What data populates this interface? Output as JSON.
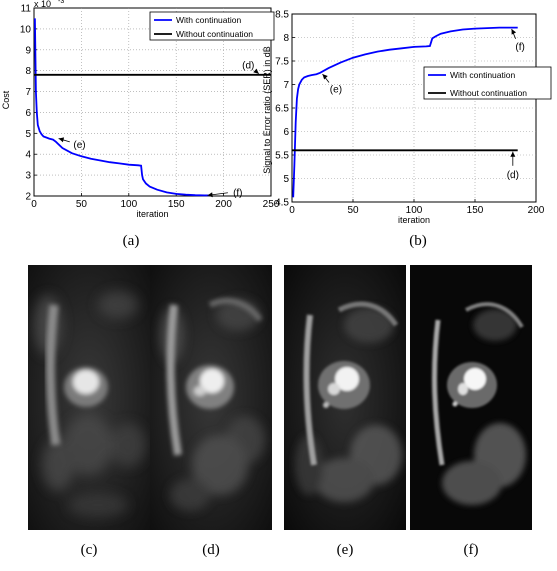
{
  "captions": {
    "a": "(a)",
    "b": "(b)",
    "c": "(c)",
    "d": "(d)",
    "e": "(e)",
    "f": "(f)"
  },
  "colors": {
    "with": "#0000ff",
    "without": "#000000"
  },
  "chart_data": [
    {
      "type": "line",
      "ylabel": "Cost",
      "xlabel": "iteration",
      "yexponent": "x 10",
      "yexponent_power": "-3",
      "xlim": [
        0,
        250
      ],
      "ylim": [
        2,
        11
      ],
      "xticks": [
        "0",
        "50",
        "100",
        "150",
        "200",
        "250"
      ],
      "yticks": [
        "2",
        "3",
        "4",
        "5",
        "6",
        "7",
        "8",
        "9",
        "10",
        "11"
      ],
      "grid": true,
      "legend_position": "top-right",
      "series": [
        {
          "name": "With continuation",
          "color": "#0000ff",
          "x": [
            1,
            2,
            3,
            4,
            6,
            8,
            10,
            13,
            16,
            20,
            23,
            30,
            40,
            50,
            60,
            70,
            80,
            90,
            100,
            110,
            113,
            114,
            115,
            118,
            122,
            130,
            140,
            150,
            160,
            170,
            180,
            185
          ],
          "y": [
            10.5,
            7.0,
            6.0,
            5.4,
            5.1,
            4.95,
            4.85,
            4.8,
            4.75,
            4.7,
            4.6,
            4.3,
            4.05,
            3.9,
            3.78,
            3.7,
            3.62,
            3.56,
            3.5,
            3.47,
            3.45,
            3.0,
            2.8,
            2.6,
            2.45,
            2.3,
            2.17,
            2.1,
            2.06,
            2.04,
            2.03,
            2.03
          ]
        },
        {
          "name": "Without continuation",
          "color": "#000000",
          "x": [
            0,
            250
          ],
          "y": [
            7.8,
            7.8
          ]
        }
      ],
      "annotations": [
        {
          "text": "(d)",
          "x": 226,
          "y": 8.3,
          "ax": 237,
          "ay": 7.85
        },
        {
          "text": "(e)",
          "x": 48,
          "y": 4.5,
          "ax": 26,
          "ay": 4.75
        },
        {
          "text": "(f)",
          "x": 215,
          "y": 2.2,
          "ax": 183,
          "ay": 2.03
        }
      ]
    },
    {
      "type": "line",
      "ylabel": "Signal to Error ratio (SER) in dB",
      "xlabel": "iteration",
      "xlim": [
        0,
        200
      ],
      "ylim": [
        4.5,
        8.5
      ],
      "xticks": [
        "0",
        "50",
        "100",
        "150",
        "200"
      ],
      "yticks": [
        "4.5",
        "5",
        "5.5",
        "6",
        "6.5",
        "7",
        "7.5",
        "8",
        "8.5"
      ],
      "grid": true,
      "legend_position": "center-right",
      "series": [
        {
          "name": "With continuation",
          "color": "#0000ff",
          "x": [
            1,
            2,
            3,
            4,
            5,
            6,
            8,
            10,
            13,
            16,
            20,
            23,
            30,
            40,
            50,
            60,
            70,
            80,
            90,
            100,
            110,
            113,
            114,
            115,
            118,
            122,
            130,
            140,
            150,
            160,
            170,
            180,
            185
          ],
          "y": [
            4.6,
            5.3,
            6.2,
            6.7,
            6.9,
            7.0,
            7.1,
            7.15,
            7.18,
            7.2,
            7.22,
            7.25,
            7.35,
            7.47,
            7.57,
            7.64,
            7.7,
            7.74,
            7.77,
            7.8,
            7.81,
            7.82,
            7.9,
            7.98,
            8.03,
            8.08,
            8.13,
            8.17,
            8.19,
            8.2,
            8.21,
            8.21,
            8.21
          ]
        },
        {
          "name": "Without continuation",
          "color": "#000000",
          "x": [
            0,
            185
          ],
          "y": [
            5.6,
            5.6
          ]
        }
      ],
      "annotations": [
        {
          "text": "(e)",
          "x": 36,
          "y": 6.92,
          "ax": 25,
          "ay": 7.22
        },
        {
          "text": "(f)",
          "x": 187,
          "y": 7.82,
          "ax": 180,
          "ay": 8.18
        },
        {
          "text": "(d)",
          "x": 181,
          "y": 5.1,
          "ax": 181,
          "ay": 5.57
        }
      ]
    }
  ]
}
